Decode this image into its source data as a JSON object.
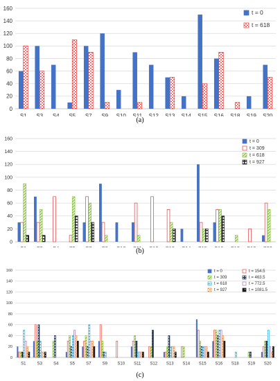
{
  "figure": {
    "captions": [
      "(a)",
      "(b)",
      "(c)"
    ]
  },
  "colors": {
    "t0": "#4472c4",
    "t154_5": "#e84c3d",
    "t309": "#e03c3c",
    "t463_5": "#22314f",
    "t618": "#8ac43c",
    "t772_5": "#9e7fb3",
    "t927": "#1f1f1f",
    "t1081_5": "#7b2a2a",
    "t618_cyan": "#2ab6e6",
    "t927_orange": "#e8914a"
  },
  "chart_data": [
    {
      "type": "bar",
      "caption": "(a)",
      "categories": [
        "S1",
        "S3",
        "S4",
        "S5",
        "S7",
        "S9",
        "S10",
        "S11",
        "S12",
        "S13",
        "S14",
        "S15",
        "S16",
        "S18",
        "S19",
        "S20"
      ],
      "ylim": [
        0,
        160
      ],
      "yticks": [
        0,
        20,
        40,
        60,
        80,
        100,
        120,
        140,
        160
      ],
      "grid": true,
      "legend_position": "top-right",
      "series": [
        {
          "name": "t = 0",
          "color": "#4472c4",
          "pattern": "solid",
          "values": [
            60,
            100,
            70,
            10,
            100,
            120,
            30,
            90,
            70,
            50,
            20,
            150,
            80,
            0,
            20,
            70
          ]
        },
        {
          "name": "t = 618",
          "color": "#e03c3c",
          "pattern": "dots",
          "values": [
            100,
            60,
            0,
            110,
            90,
            10,
            0,
            10,
            0,
            50,
            0,
            40,
            90,
            10,
            0,
            50
          ]
        }
      ]
    },
    {
      "type": "bar",
      "caption": "(b)",
      "categories": [
        "S1",
        "S3",
        "S4",
        "S5",
        "S7",
        "S9",
        "S10",
        "S11",
        "S12",
        "S13",
        "S14",
        "S15",
        "S16",
        "S18",
        "S19",
        "S20"
      ],
      "ylim": [
        0,
        160
      ],
      "yticks": [
        0,
        20,
        40,
        60,
        80,
        100,
        120,
        140,
        160
      ],
      "grid": true,
      "legend_position": "top-right",
      "series": [
        {
          "name": "t = 0",
          "color": "#4472c4",
          "pattern": "solid",
          "values": [
            30,
            70,
            0,
            0,
            30,
            90,
            30,
            30,
            0,
            0,
            20,
            120,
            30,
            0,
            0,
            10
          ]
        },
        {
          "name": "t = 309",
          "color": "#e03c3c",
          "pattern": "outline",
          "values": [
            30,
            30,
            70,
            10,
            70,
            30,
            0,
            60,
            70,
            50,
            0,
            30,
            50,
            0,
            20,
            60
          ]
        },
        {
          "name": "t = 618",
          "color": "#8ac43c",
          "pattern": "diag",
          "values": [
            90,
            50,
            0,
            70,
            60,
            10,
            0,
            10,
            0,
            30,
            0,
            20,
            50,
            10,
            0,
            50
          ]
        },
        {
          "name": "t = 927",
          "color": "#1f1f1f",
          "pattern": "grid",
          "values": [
            10,
            10,
            0,
            40,
            30,
            0,
            0,
            0,
            0,
            20,
            0,
            20,
            40,
            0,
            0,
            0
          ]
        }
      ]
    },
    {
      "type": "bar",
      "caption": "(c)",
      "categories": [
        "S1",
        "S3",
        "S4",
        "S5",
        "S7",
        "S9",
        "S10",
        "S11",
        "S12",
        "S13",
        "S14",
        "S15",
        "S16",
        "S18",
        "S19",
        "S20"
      ],
      "ylim": [
        0,
        160
      ],
      "yticks": [
        0,
        20,
        40,
        60,
        80,
        100,
        120,
        140,
        160
      ],
      "grid": true,
      "legend_position": "top-right",
      "legend_columns": 2,
      "series": [
        {
          "name": "t = 0",
          "color": "#4472c4",
          "pattern": "solid",
          "values": [
            20,
            30,
            0,
            10,
            20,
            30,
            0,
            20,
            0,
            10,
            0,
            70,
            30,
            0,
            0,
            10
          ]
        },
        {
          "name": "t = 154.5",
          "color": "#e84c3d",
          "pattern": "outline",
          "values": [
            10,
            60,
            0,
            30,
            30,
            60,
            30,
            30,
            20,
            10,
            20,
            50,
            50,
            0,
            0,
            20
          ]
        },
        {
          "name": "t = 309",
          "color": "#8ac43c",
          "pattern": "diag",
          "values": [
            10,
            30,
            30,
            40,
            40,
            30,
            0,
            40,
            20,
            20,
            20,
            30,
            50,
            0,
            10,
            30
          ]
        },
        {
          "name": "t = 463.5",
          "color": "#22314f",
          "pattern": "grid",
          "values": [
            10,
            60,
            40,
            20,
            20,
            10,
            0,
            30,
            50,
            40,
            0,
            20,
            40,
            0,
            10,
            30
          ]
        },
        {
          "name": "t = 618",
          "color": "#2ab6e6",
          "pattern": "dash",
          "values": [
            50,
            30,
            0,
            40,
            60,
            10,
            0,
            10,
            0,
            20,
            0,
            20,
            50,
            10,
            0,
            50
          ]
        },
        {
          "name": "t = 772.5",
          "color": "#9e7fb3",
          "pattern": "outline",
          "values": [
            30,
            10,
            0,
            50,
            30,
            0,
            0,
            10,
            0,
            20,
            0,
            20,
            50,
            0,
            0,
            20
          ]
        },
        {
          "name": "t = 927",
          "color": "#e8914a",
          "pattern": "dots",
          "values": [
            20,
            10,
            0,
            40,
            30,
            0,
            0,
            10,
            0,
            20,
            0,
            20,
            40,
            0,
            0,
            10
          ]
        },
        {
          "name": "t = 1081.5",
          "color": "#1f1f1f",
          "pattern": "dense",
          "values": [
            10,
            10,
            0,
            30,
            20,
            0,
            0,
            10,
            0,
            10,
            0,
            10,
            30,
            0,
            0,
            20
          ]
        }
      ]
    }
  ]
}
